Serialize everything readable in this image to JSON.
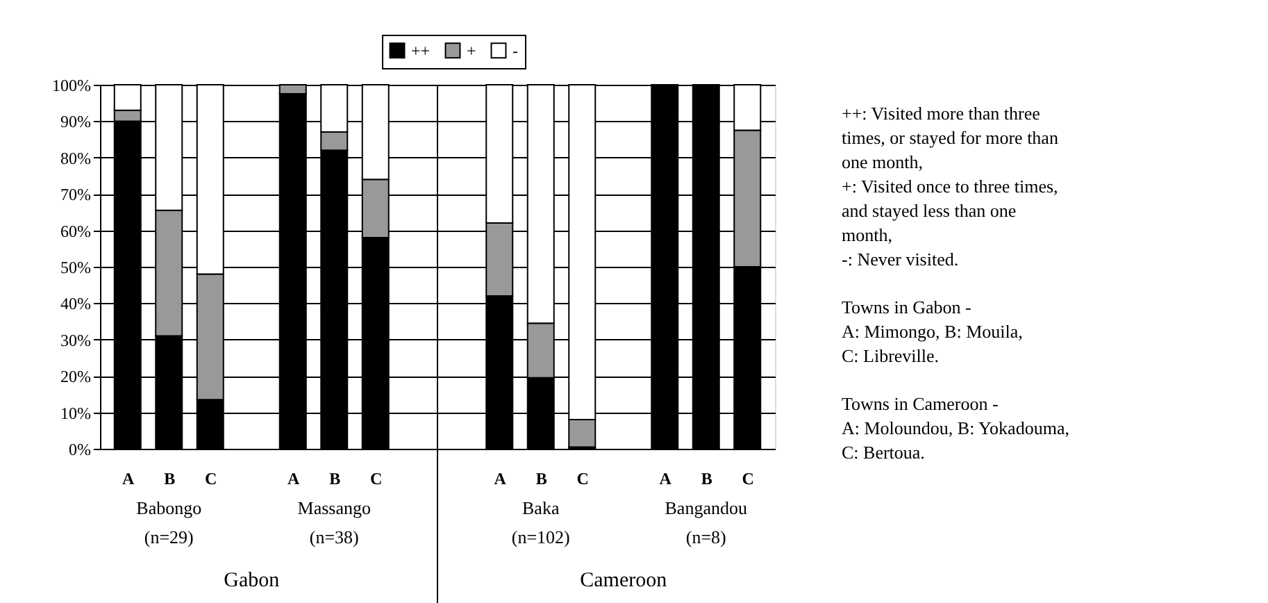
{
  "chart_data": {
    "type": "bar",
    "stacked": true,
    "categories": [
      "A",
      "B",
      "C",
      null,
      "A",
      "B",
      "C",
      null,
      null,
      "A",
      "B",
      "C",
      null,
      "A",
      "B",
      "C"
    ],
    "series": [
      {
        "name": "++",
        "color": "#000000",
        "values": [
          90,
          31,
          13.5,
          null,
          97.5,
          82,
          58,
          null,
          null,
          42,
          19.5,
          0.5,
          null,
          100,
          100,
          50
        ]
      },
      {
        "name": "+",
        "color": "#999999",
        "values": [
          3,
          34.5,
          34.5,
          null,
          2.5,
          5,
          16,
          null,
          null,
          20,
          15,
          7.5,
          null,
          0,
          0,
          37.5
        ]
      },
      {
        "name": "-",
        "color": "#ffffff",
        "values": [
          7,
          34.5,
          52,
          null,
          0,
          13,
          26,
          null,
          null,
          38,
          65.5,
          92,
          null,
          0,
          0,
          12.5
        ]
      }
    ],
    "ylim": [
      0,
      100
    ],
    "yticks": [
      {
        "value": 0,
        "label": "0%"
      },
      {
        "value": 10,
        "label": "10%"
      },
      {
        "value": 20,
        "label": "20%"
      },
      {
        "value": 30,
        "label": "30%"
      },
      {
        "value": 40,
        "label": "40%"
      },
      {
        "value": 50,
        "label": "50%"
      },
      {
        "value": 60,
        "label": "60%"
      },
      {
        "value": 70,
        "label": "70%"
      },
      {
        "value": 80,
        "label": "80%"
      },
      {
        "value": 90,
        "label": "90%"
      },
      {
        "value": 100,
        "label": "100%"
      }
    ],
    "grid": "y",
    "legend": "top",
    "annotations": [
      "Babongo\n(n=29)",
      "Massango\n(n=38)",
      "Baka\n(n=102)",
      "Bangandou\n(n=8)",
      "Gabon",
      "Cameroon",
      "++: Visited more than three\ntimes, or stayed for more than\none month,\n+: Visited once to three times,\nand stayed less than one\nmonth,\n-: Never visited.",
      "Towns in Gabon -\nA: Mimongo, B: Mouila,\nC: Libreville.",
      "Towns in Cameroon -\nA: Moloundou, B: Yokadouma,\nC: Bertoua."
    ]
  }
}
